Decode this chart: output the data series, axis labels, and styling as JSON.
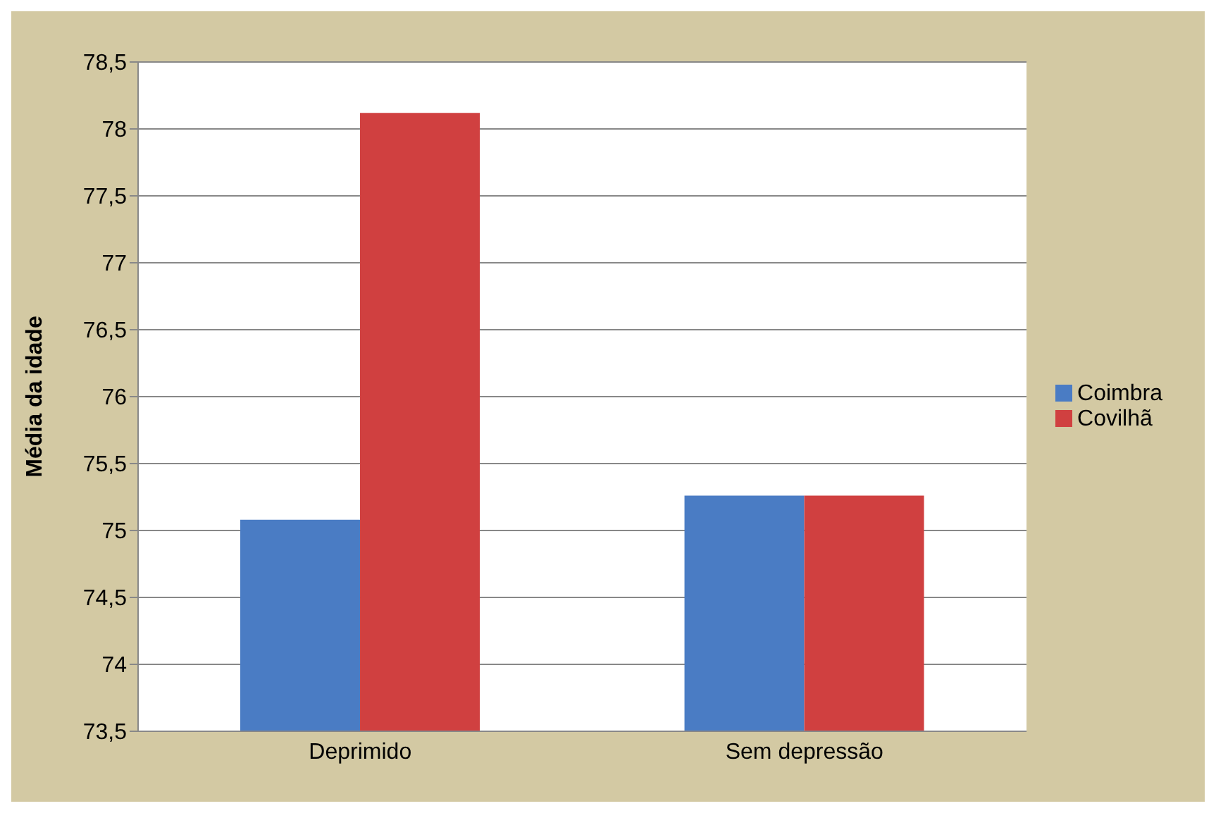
{
  "chart_data": {
    "type": "bar",
    "ylabel": "Média da idade",
    "categories": [
      "Deprimido",
      "Sem depressão"
    ],
    "series": [
      {
        "name": "Coimbra",
        "color": "#4a7cc4",
        "values": [
          75.08,
          75.26
        ]
      },
      {
        "name": "Covilhã",
        "color": "#d04040",
        "values": [
          78.12,
          75.26
        ]
      }
    ],
    "ylim": [
      73.5,
      78.5
    ],
    "yticks": [
      {
        "value": 73.5,
        "label": "73,5"
      },
      {
        "value": 74,
        "label": "74"
      },
      {
        "value": 74.5,
        "label": "74,5"
      },
      {
        "value": 75,
        "label": "75"
      },
      {
        "value": 75.5,
        "label": "75,5"
      },
      {
        "value": 76,
        "label": "76"
      },
      {
        "value": 76.5,
        "label": "76,5"
      },
      {
        "value": 77,
        "label": "77"
      },
      {
        "value": 77.5,
        "label": "77,5"
      },
      {
        "value": 78,
        "label": "78"
      },
      {
        "value": 78.5,
        "label": "78,5"
      }
    ],
    "grid": "y",
    "legend": "right"
  }
}
